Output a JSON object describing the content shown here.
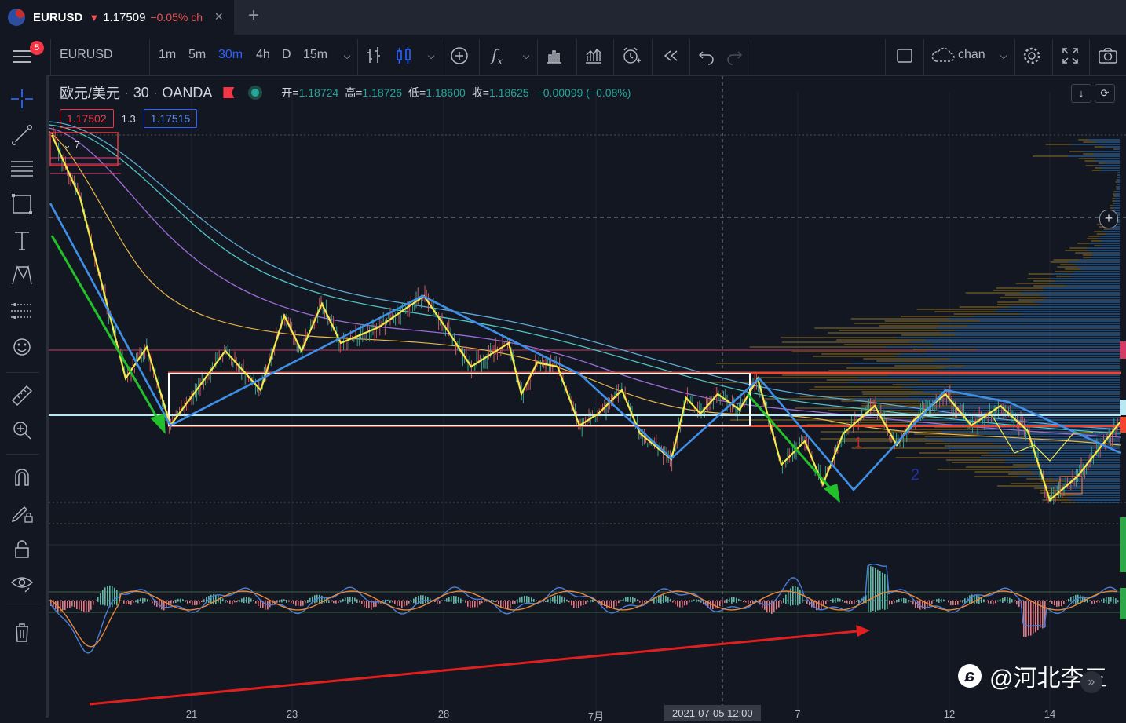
{
  "browser_tab": {
    "symbol": "EURUSD",
    "arrow": "▼",
    "price": "1.17509",
    "change": "−0.05% ch",
    "close_glyph": "×",
    "new_tab_glyph": "+"
  },
  "toolbar": {
    "notification_count": "5",
    "symbol": "EURUSD",
    "timeframes": [
      "1m",
      "5m",
      "30m",
      "4h",
      "D",
      "15m"
    ],
    "active_timeframe": "30m",
    "layout_name": "chan"
  },
  "chart": {
    "title": "欧元/美元",
    "interval": "30",
    "source": "OANDA",
    "ohlc": {
      "open_label": "开=",
      "open": "1.18724",
      "high_label": "高=",
      "high": "1.18726",
      "low_label": "低=",
      "low": "1.18600",
      "close_label": "收=",
      "close": "1.18625",
      "change": "−0.00099 (−0.08%)"
    },
    "bid": "1.17502",
    "spread": "1.3",
    "ask": "1.17515",
    "collapse_label": "7",
    "x_labels": [
      "21",
      "23",
      "28",
      "7月",
      "7",
      "12",
      "14"
    ],
    "crosshair_label": "2021-07-05   12:00",
    "annotations": [
      "1",
      "2"
    ],
    "watermark": "@河北李三"
  },
  "colors": {
    "background": "#131722",
    "yellow_stroke": "#f5e94a",
    "blue_stroke": "#3f8fe6",
    "green_arrow": "#22c02a",
    "red_arrow": "#e01f1f",
    "rect_box": "#ffffff",
    "red_line": "#f2432f",
    "accent": "#2962ff"
  },
  "icons": {
    "left_toolbar": [
      "crosshair-icon",
      "trendline-icon",
      "fib-icon",
      "rectangle-icon",
      "text-icon",
      "pattern-icon",
      "prediction-icon",
      "emoji-icon",
      "ruler-icon",
      "zoom-icon",
      "magnet-icon",
      "lock-drawing-icon",
      "lock-icon",
      "eye-icon",
      "trash-icon"
    ]
  }
}
